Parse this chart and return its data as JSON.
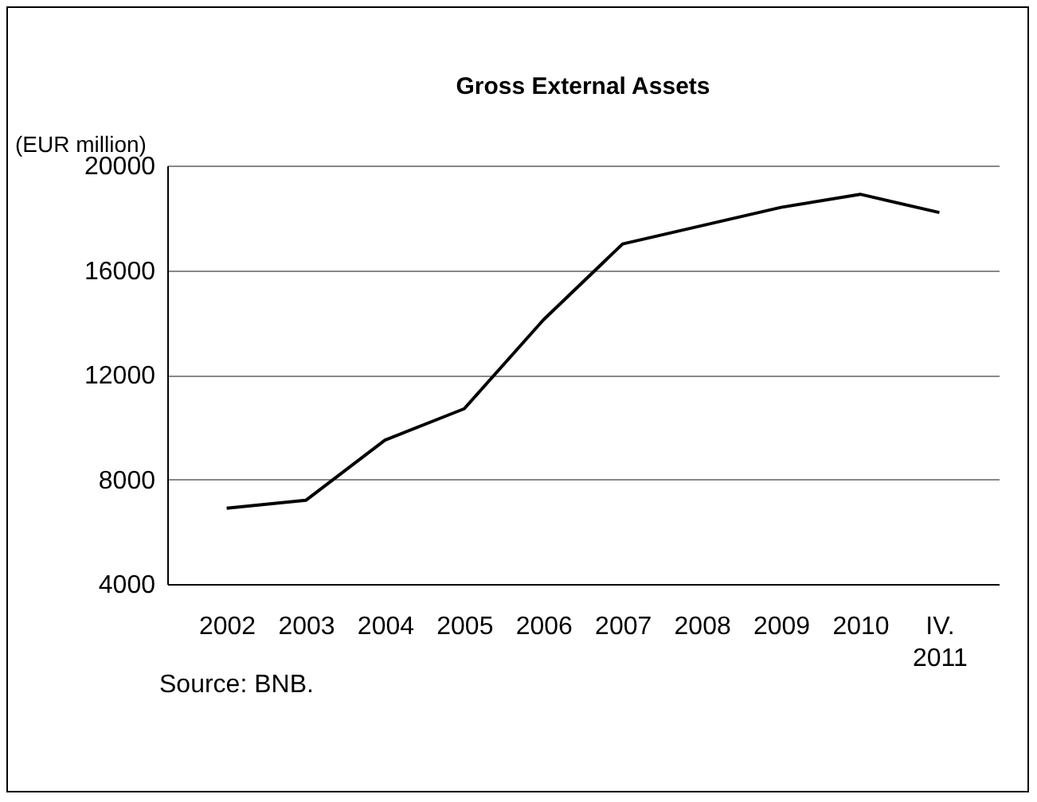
{
  "chart_data": {
    "type": "line",
    "title": "Gross External Assets",
    "ylabel": "(EUR million)",
    "annotations": [
      "Source: BNB."
    ],
    "categories": [
      "2002",
      "2003",
      "2004",
      "2005",
      "2006",
      "2007",
      "2008",
      "2009",
      "2010",
      "IV. 2011"
    ],
    "series": [
      {
        "color": "#000000",
        "values": [
          6900,
          7200,
          9500,
          10700,
          14100,
          17000,
          17700,
          18400,
          18900,
          18200
        ]
      }
    ],
    "ylim": [
      4000,
      20000
    ],
    "yticks": [
      4000,
      8000,
      12000,
      16000,
      20000
    ],
    "grid": "y",
    "legend": false
  }
}
